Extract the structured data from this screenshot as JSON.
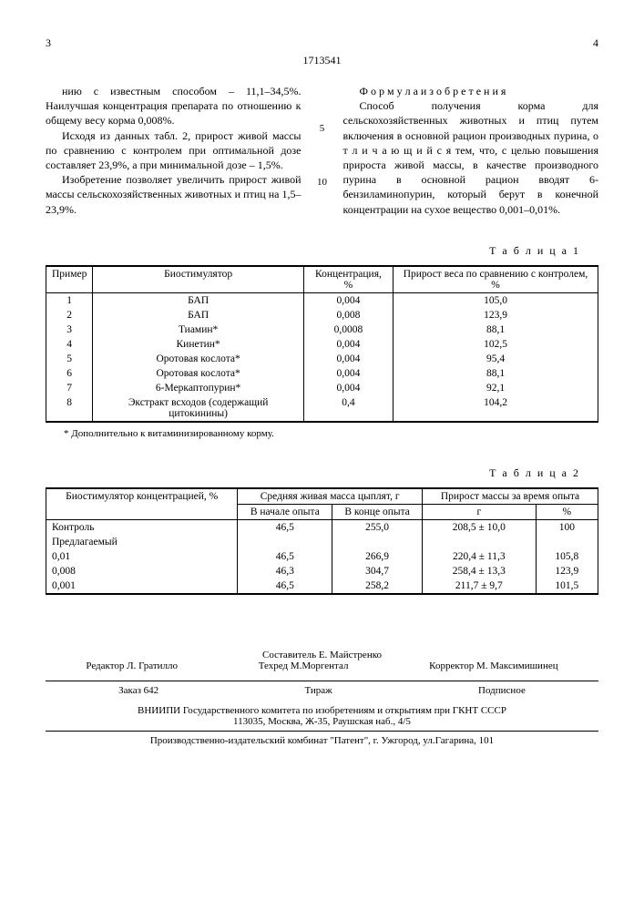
{
  "header": {
    "leftnum": "3",
    "docnum": "1713541",
    "rightnum": "4"
  },
  "leftcol": {
    "p1": "нию с известным способом – 11,1–34,5%. Наилучшая концентрация препарата по отношению к общему весу корма 0,008%.",
    "p2": "Исходя из данных табл. 2, прирост живой массы по сравнению с контролем при оптимальной дозе составляет 23,9%, а при минимальной дозе – 1,5%.",
    "p3": "Изобретение позволяет увеличить прирост живой массы сельскохозяйственных животных и птиц на 1,5–23,9%."
  },
  "rightcol": {
    "title": "Ф о р м у л а  и з о б р е т е н и я",
    "p1": "Способ получения корма для сельскохозяйственных животных и птиц путем включения в основной рацион производных пурина, о т л и ч а ю щ и й с я  тем, что, с целью повышения прироста живой массы, в качестве производного пурина в основной рацион вводят 6-бензиламинопурин, который берут в конечной концентрации на сухое вещество 0,001–0,01%."
  },
  "linenums": {
    "five": "5",
    "ten": "10"
  },
  "table1": {
    "label": "Т а б л и ц а  1",
    "headers": [
      "Пример",
      "Биостимулятор",
      "Концентрация, %",
      "Прирост веса по сравнению с контролем, %"
    ],
    "rows": [
      [
        "1",
        "БАП",
        "0,004",
        "105,0"
      ],
      [
        "2",
        "БАП",
        "0,008",
        "123,9"
      ],
      [
        "3",
        "Тиамин*",
        "0,0008",
        "88,1"
      ],
      [
        "4",
        "Кинетин*",
        "0,004",
        "102,5"
      ],
      [
        "5",
        "Оротовая кослота*",
        "0,004",
        "95,4"
      ],
      [
        "6",
        "Оротовая кослота*",
        "0,004",
        "88,1"
      ],
      [
        "7",
        "6-Меркаптопурин*",
        "0,004",
        "92,1"
      ],
      [
        "8",
        "Экстракт всходов (содержащий цитокинины)",
        "0,4",
        "104,2"
      ]
    ],
    "footnote": "* Дополнительно к витаминизированному корму."
  },
  "table2": {
    "label": "Т а б л и ц а  2",
    "topheaders": [
      "Биостимулятор концентрацией, %",
      "Средняя живая масса цыплят, г",
      "Прирост массы за время опыта"
    ],
    "subheaders": [
      "В начале опыта",
      "В конце опыта",
      "г",
      "%"
    ],
    "rows": [
      [
        "Контроль",
        "46,5",
        "255,0",
        "208,5 ± 10,0",
        "100"
      ],
      [
        "Предлагаемый",
        "",
        "",
        "",
        ""
      ],
      [
        "0,01",
        "46,5",
        "266,9",
        "220,4 ± 11,3",
        "105,8"
      ],
      [
        "0,008",
        "46,3",
        "304,7",
        "258,4 ± 13,3",
        "123,9"
      ],
      [
        "0,001",
        "46,5",
        "258,2",
        "211,7 ± 9,7",
        "101,5"
      ]
    ]
  },
  "credits": {
    "comp": "Составитель  Е. Майстренко",
    "editor": "Редактор  Л. Гратилло",
    "tech": "Техред М.Моргентал",
    "corr": "Корректор М. Максимишинец",
    "order": "Заказ  642",
    "tirazh": "Тираж",
    "pod": "Подписное",
    "vniipi": "ВНИИПИ Государственного комитета по изобретениям и открытиям при ГКНТ СССР",
    "addr": "113035, Москва, Ж-35, Раушская наб., 4/5",
    "pub": "Производственно-издательский комбинат \"Патент\", г. Ужгород, ул.Гагарина, 101"
  }
}
